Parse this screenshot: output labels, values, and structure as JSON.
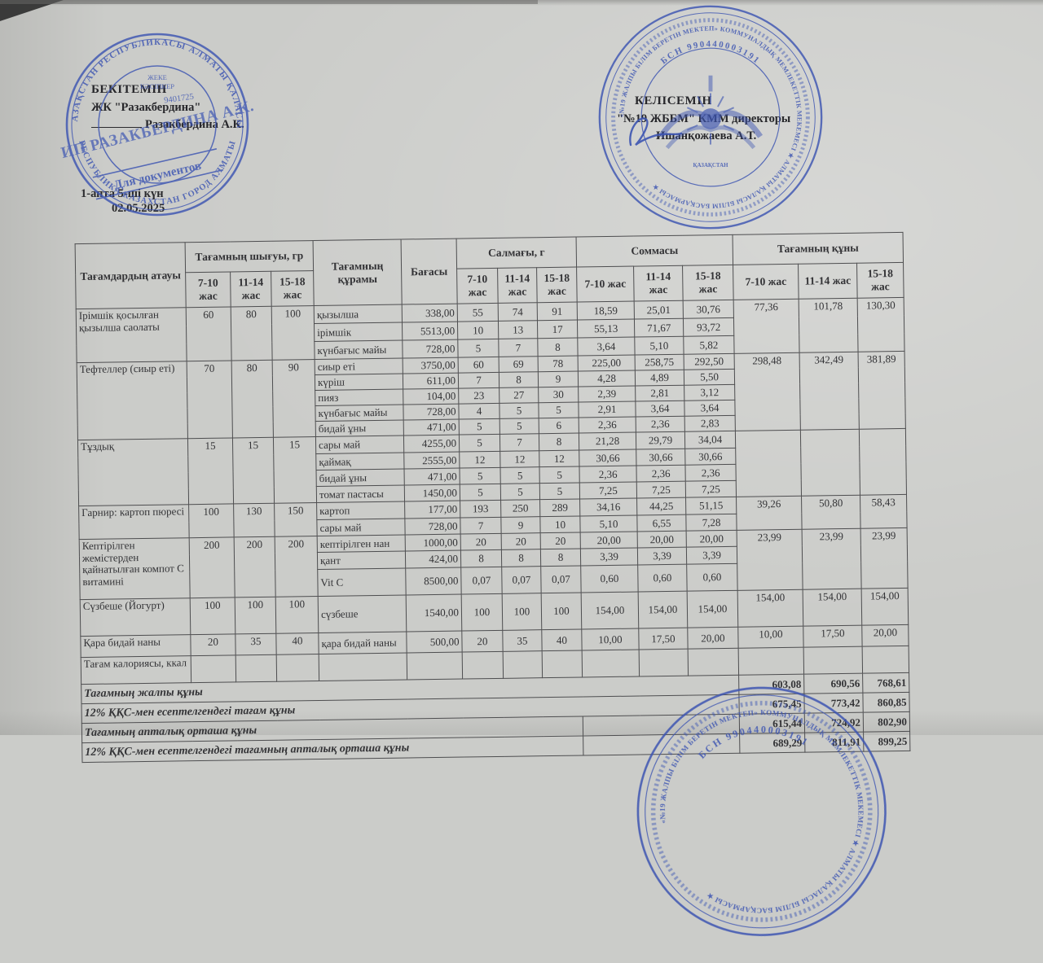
{
  "page": {
    "approval_left": {
      "title": "БЕКІТЕМІН",
      "line2": "ЖК \"Разакбердина\"",
      "line3": "Разакбердина А.К."
    },
    "approval_right": {
      "title": "КЕЛІСЕМІН",
      "line2": "\"№19 ЖББМ\" КММ директоры",
      "line3": "Ишанқожаева А.Т."
    },
    "week_line": "1-апта 5-ші күн",
    "date": "02.05.2025"
  },
  "stamp_left": {
    "ring_top": "ҚАЗАҚСТАН РЕСПУБЛИКАСЫ АЛМАТЫ ҚАЛАСЫ",
    "ring_bottom": "РЕСПУБЛИКА КАЗАХСТАН ГОРОД АЛМАТЫ",
    "inner_small_1": "ЖЕКЕ",
    "inner_small_2": "КӘСІПКЕР",
    "id_number": "9401725",
    "main": "ИП РАЗАКБЕРДИНА А.К.",
    "ribbon": "Для документов",
    "color": "#3d55b2"
  },
  "stamp_school": {
    "ring_text": "«№19 ЖАЛПЫ БІЛІМ БЕРЕТІН МЕКТЕП» КОММУНАЛДЫҚ МЕМЛЕКЕТТІК МЕКЕМЕСІ ★ АЛМАТЫ ҚАЛАСЫ БІЛІМ БАСҚАРМАСЫ ★ ",
    "bin": "БСН 990440003191",
    "center_label": "ҚАЗАҚСТАН",
    "color": "#3d55b2"
  },
  "table": {
    "headers": {
      "name": "Тағамдардың атауы",
      "output": "Тағамның шығуы, гр",
      "composition": "Тағамның құрамы",
      "price": "Бағасы",
      "weight": "Салмағы, г",
      "sum": "Соммасы",
      "cost": "Тағамның құны",
      "ages": [
        "7-10 жас",
        "11-14 жас",
        "15-18 жас"
      ]
    },
    "dishes": [
      {
        "name": "Ірімшік қосылған қызылша саолаты",
        "out": [
          "60",
          "80",
          "100"
        ],
        "cost": [
          "77,36",
          "101,78",
          "130,30"
        ],
        "ingredients": [
          {
            "label": "қызылша",
            "price": "338,00",
            "w": [
              "55",
              "74",
              "91"
            ],
            "s": [
              "18,59",
              "25,01",
              "30,76"
            ]
          },
          {
            "label": "ірімшік",
            "price": "5513,00",
            "w": [
              "10",
              "13",
              "17"
            ],
            "s": [
              "55,13",
              "71,67",
              "93,72"
            ]
          },
          {
            "label": "күнбағыс майы",
            "price": "728,00",
            "w": [
              "5",
              "7",
              "8"
            ],
            "s": [
              "3,64",
              "5,10",
              "5,82"
            ]
          }
        ]
      },
      {
        "name": "Тефтеллер (сиыр еті)",
        "out": [
          "70",
          "80",
          "90"
        ],
        "cost": [
          "298,48",
          "342,49",
          "381,89"
        ],
        "ingredients": [
          {
            "label": "сиыр еті",
            "price": "3750,00",
            "w": [
              "60",
              "69",
              "78"
            ],
            "s": [
              "225,00",
              "258,75",
              "292,50"
            ]
          },
          {
            "label": "күріш",
            "price": "611,00",
            "w": [
              "7",
              "8",
              "9"
            ],
            "s": [
              "4,28",
              "4,89",
              "5,50"
            ]
          },
          {
            "label": "пияз",
            "price": "104,00",
            "w": [
              "23",
              "27",
              "30"
            ],
            "s": [
              "2,39",
              "2,81",
              "3,12"
            ]
          },
          {
            "label": "күнбағыс майы",
            "price": "728,00",
            "w": [
              "4",
              "5",
              "5"
            ],
            "s": [
              "2,91",
              "3,64",
              "3,64"
            ]
          },
          {
            "label": "бидай ұны",
            "price": "471,00",
            "w": [
              "5",
              "5",
              "6"
            ],
            "s": [
              "2,36",
              "2,36",
              "2,83"
            ]
          }
        ]
      },
      {
        "name": "Тұздық",
        "out": [
          "15",
          "15",
          "15"
        ],
        "cost": [
          "",
          "",
          ""
        ],
        "ingredients": [
          {
            "label": "сары май",
            "price": "4255,00",
            "w": [
              "5",
              "7",
              "8"
            ],
            "s": [
              "21,28",
              "29,79",
              "34,04"
            ]
          },
          {
            "label": "қаймақ",
            "price": "2555,00",
            "w": [
              "12",
              "12",
              "12"
            ],
            "s": [
              "30,66",
              "30,66",
              "30,66"
            ]
          },
          {
            "label": "бидай ұны",
            "price": "471,00",
            "w": [
              "5",
              "5",
              "5"
            ],
            "s": [
              "2,36",
              "2,36",
              "2,36"
            ]
          },
          {
            "label": "томат пастасы",
            "price": "1450,00",
            "w": [
              "5",
              "5",
              "5"
            ],
            "s": [
              "7,25",
              "7,25",
              "7,25"
            ]
          }
        ]
      },
      {
        "name": "Гарнир: картоп пюресі",
        "out": [
          "100",
          "130",
          "150"
        ],
        "cost": [
          "39,26",
          "50,80",
          "58,43"
        ],
        "ingredients": [
          {
            "label": "картоп",
            "price": "177,00",
            "w": [
              "193",
              "250",
              "289"
            ],
            "s": [
              "34,16",
              "44,25",
              "51,15"
            ]
          },
          {
            "label": "сары май",
            "price": "728,00",
            "w": [
              "7",
              "9",
              "10"
            ],
            "s": [
              "5,10",
              "6,55",
              "7,28"
            ]
          }
        ]
      },
      {
        "name": "Кептірілген жемістерден қайнатылған компот С витамині",
        "out": [
          "200",
          "200",
          "200"
        ],
        "cost": [
          "23,99",
          "23,99",
          "23,99"
        ],
        "ingredients": [
          {
            "label": "кептірілген нан",
            "price": "1000,00",
            "w": [
              "20",
              "20",
              "20"
            ],
            "s": [
              "20,00",
              "20,00",
              "20,00"
            ]
          },
          {
            "label": "қант",
            "price": "424,00",
            "w": [
              "8",
              "8",
              "8"
            ],
            "s": [
              "3,39",
              "3,39",
              "3,39"
            ]
          },
          {
            "label": "Vit C",
            "price": "8500,00",
            "w": [
              "0,07",
              "0,07",
              "0,07"
            ],
            "s": [
              "0,60",
              "0,60",
              "0,60"
            ]
          }
        ]
      },
      {
        "name": "Сүзбеше (Йогурт)",
        "out": [
          "100",
          "100",
          "100"
        ],
        "cost": [
          "154,00",
          "154,00",
          "154,00"
        ],
        "ingredients": [
          {
            "label": "сүзбеше",
            "price": "1540,00",
            "w": [
              "100",
              "100",
              "100"
            ],
            "s": [
              "154,00",
              "154,00",
              "154,00"
            ]
          }
        ]
      },
      {
        "name": "Қара бидай наны",
        "out": [
          "20",
          "35",
          "40"
        ],
        "cost": [
          "10,00",
          "17,50",
          "20,00"
        ],
        "ingredients": [
          {
            "label": "қара бидай наны",
            "price": "500,00",
            "w": [
              "20",
              "35",
              "40"
            ],
            "s": [
              "10,00",
              "17,50",
              "20,00"
            ]
          }
        ]
      }
    ],
    "kcal_row_label": "Тағам калориясы, ккал",
    "footer_rows": [
      {
        "label": "Тағамның жалпы құны",
        "values": [
          "603,08",
          "690,56",
          "768,61"
        ]
      },
      {
        "label": "12% ҚҚС-мен есептелгендегі тағам құны",
        "values": [
          "675,45",
          "773,42",
          "860,85"
        ]
      },
      {
        "label": "Тағамның апталық орташа құны",
        "values": [
          "615,44",
          "724,92",
          "802,90"
        ]
      },
      {
        "label": "12% ҚҚС-мен есептелгендегі тағамның апталық орташа құны",
        "values": [
          "689,29",
          "811,91",
          "899,25"
        ]
      }
    ]
  }
}
